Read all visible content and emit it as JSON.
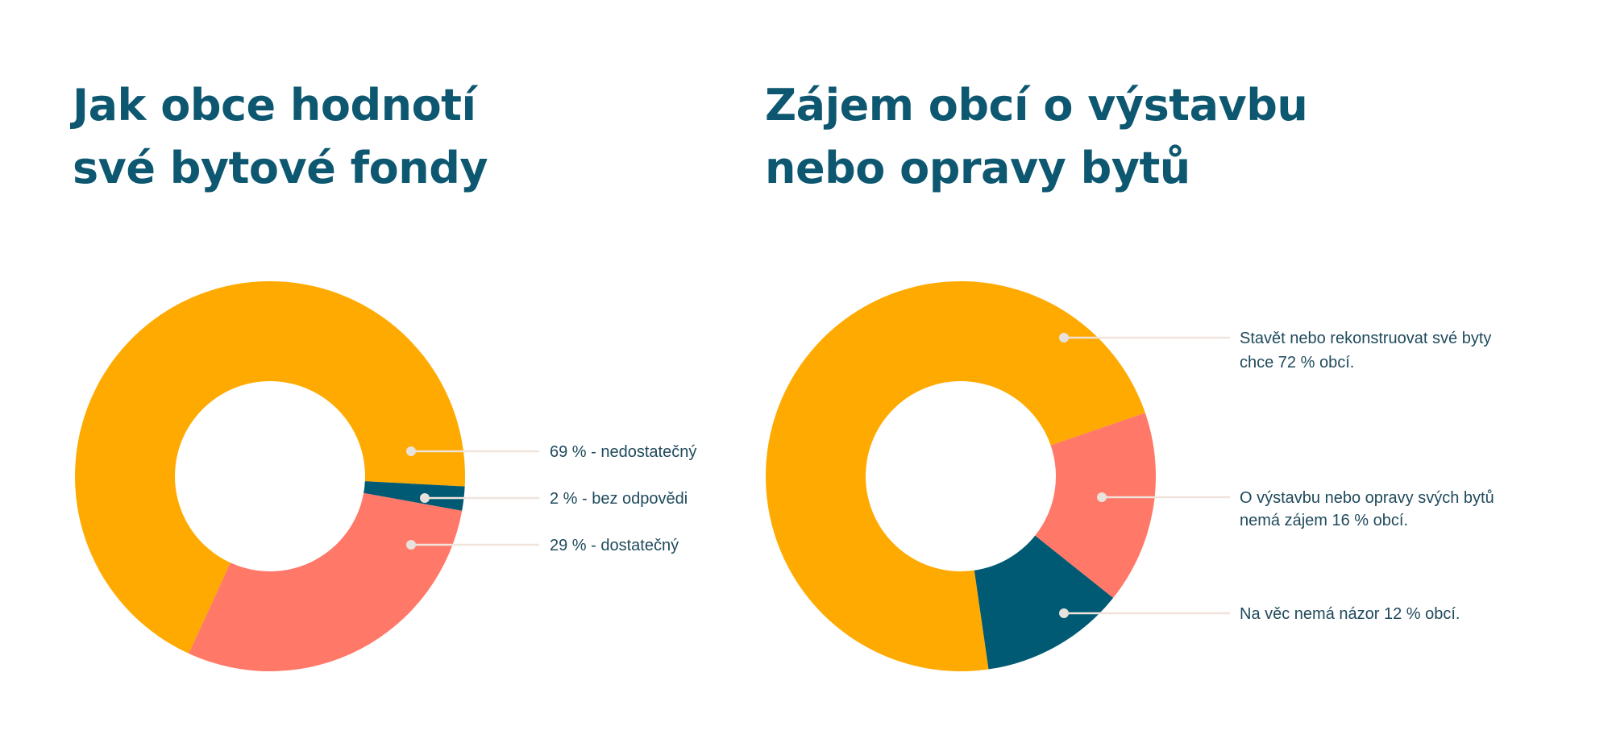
{
  "colors": {
    "orange": "#FFAA00",
    "red": "#FF7868",
    "navy": "#005A73",
    "title": "#0D5770",
    "leader": "#EFE3DC"
  },
  "chart_data": [
    {
      "type": "pie",
      "donut": true,
      "title": [
        "Jak obce hodnotí",
        "své bytové fondy"
      ],
      "start_angle_deg": 204.6,
      "slices": [
        {
          "name": "nedostatečný",
          "value": 69,
          "color": "#FFAA00",
          "label": [
            "69 % - nedostatečný"
          ]
        },
        {
          "name": "bez odpovědi",
          "value": 2,
          "color": "#005A73",
          "label": [
            "2 % - bez odpovědi"
          ]
        },
        {
          "name": "dostatečný",
          "value": 29,
          "color": "#FF7868",
          "label": [
            "29 % - dostatečný"
          ]
        }
      ]
    },
    {
      "type": "pie",
      "donut": true,
      "title": [
        "Zájem obcí o výstavbu",
        "nebo opravy bytů"
      ],
      "start_angle_deg": 171.8,
      "slices": [
        {
          "name": "chce stavět",
          "value": 72,
          "color": "#FFAA00",
          "label": [
            "Stavět nebo rekonstruovat své byty",
            "chce 72 % obcí."
          ]
        },
        {
          "name": "nemá zájem",
          "value": 16,
          "color": "#FF7868",
          "label": [
            "O výstavbu nebo opravy svých bytů",
            "nemá zájem 16 % obcí."
          ]
        },
        {
          "name": "nemá názor",
          "value": 12,
          "color": "#005A73",
          "label": [
            "Na věc nemá názor 12 % obcí."
          ]
        }
      ]
    }
  ]
}
